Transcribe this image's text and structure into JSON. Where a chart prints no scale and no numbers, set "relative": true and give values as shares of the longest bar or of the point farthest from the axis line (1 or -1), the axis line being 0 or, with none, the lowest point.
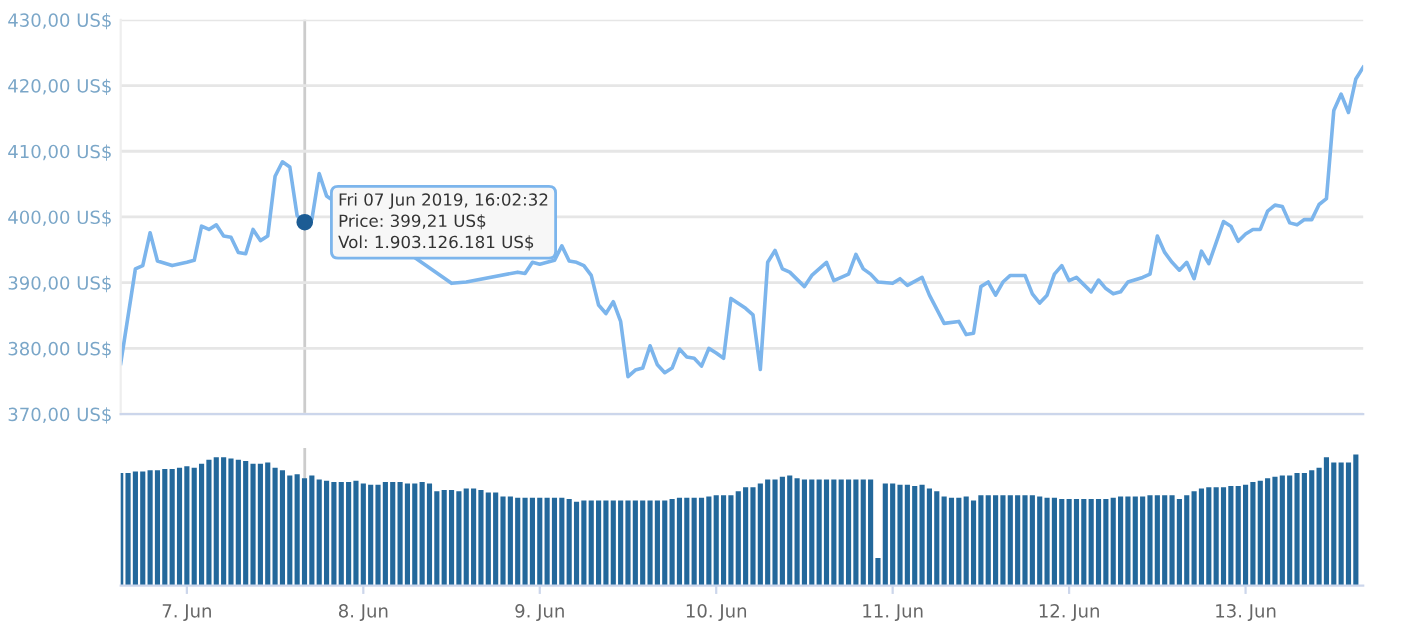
{
  "chart_data": [
    {
      "type": "line",
      "color": "#7cb5ec",
      "marker": "none",
      "grid": "y",
      "tick_labels": "y",
      "xlim": [
        "2019-06-06T15:00",
        "2019-06-13T16:00"
      ],
      "ylim": [
        370,
        430
      ],
      "yticks": [
        {
          "value": 370,
          "label": "370,00 US$"
        },
        {
          "value": 380,
          "label": "380,00 US$"
        },
        {
          "value": 390,
          "label": "390,00 US$"
        },
        {
          "value": 400,
          "label": "400,00 US$"
        },
        {
          "value": 410,
          "label": "410,00 US$"
        },
        {
          "value": 420,
          "label": "420,00 US$"
        },
        {
          "value": 430,
          "label": "430,00 US$"
        }
      ],
      "x": [
        "2019-06-06T15:00",
        "2019-06-06T17:00",
        "2019-06-06T18:00",
        "2019-06-06T19:00",
        "2019-06-06T20:00",
        "2019-06-06T22:00",
        "2019-06-07T00:00",
        "2019-06-07T01:00",
        "2019-06-07T02:00",
        "2019-06-07T03:00",
        "2019-06-07T04:00",
        "2019-06-07T05:00",
        "2019-06-07T06:00",
        "2019-06-07T07:00",
        "2019-06-07T08:00",
        "2019-06-07T09:00",
        "2019-06-07T10:00",
        "2019-06-07T11:00",
        "2019-06-07T12:00",
        "2019-06-07T13:00",
        "2019-06-07T14:00",
        "2019-06-07T15:00",
        "2019-06-07T16:02",
        "2019-06-07T17:00",
        "2019-06-07T18:00",
        "2019-06-07T19:00",
        "2019-06-08T12:00",
        "2019-06-08T14:00",
        "2019-06-08T21:00",
        "2019-06-08T22:00",
        "2019-06-08T23:00",
        "2019-06-09T00:00",
        "2019-06-09T02:00",
        "2019-06-09T03:00",
        "2019-06-09T04:00",
        "2019-06-09T05:00",
        "2019-06-09T06:00",
        "2019-06-09T07:00",
        "2019-06-09T08:00",
        "2019-06-09T09:00",
        "2019-06-09T10:00",
        "2019-06-09T11:00",
        "2019-06-09T12:00",
        "2019-06-09T13:00",
        "2019-06-09T14:00",
        "2019-06-09T15:00",
        "2019-06-09T16:00",
        "2019-06-09T17:00",
        "2019-06-09T18:00",
        "2019-06-09T19:00",
        "2019-06-09T20:00",
        "2019-06-09T21:00",
        "2019-06-09T22:00",
        "2019-06-09T23:00",
        "2019-06-10T00:00",
        "2019-06-10T01:00",
        "2019-06-10T02:00",
        "2019-06-10T04:00",
        "2019-06-10T05:00",
        "2019-06-10T06:00",
        "2019-06-10T07:00",
        "2019-06-10T08:00",
        "2019-06-10T09:00",
        "2019-06-10T10:00",
        "2019-06-10T12:00",
        "2019-06-10T13:00",
        "2019-06-10T15:00",
        "2019-06-10T16:00",
        "2019-06-10T18:00",
        "2019-06-10T19:00",
        "2019-06-10T20:00",
        "2019-06-10T21:00",
        "2019-06-10T22:00",
        "2019-06-11T00:00",
        "2019-06-11T01:00",
        "2019-06-11T02:00",
        "2019-06-11T04:00",
        "2019-06-11T05:00",
        "2019-06-11T07:00",
        "2019-06-11T09:00",
        "2019-06-11T10:00",
        "2019-06-11T11:00",
        "2019-06-11T12:00",
        "2019-06-11T13:00",
        "2019-06-11T14:00",
        "2019-06-11T15:00",
        "2019-06-11T16:00",
        "2019-06-11T18:00",
        "2019-06-11T19:00",
        "2019-06-11T20:00",
        "2019-06-11T21:00",
        "2019-06-11T22:00",
        "2019-06-11T23:00",
        "2019-06-12T00:00",
        "2019-06-12T01:00",
        "2019-06-12T03:00",
        "2019-06-12T04:00",
        "2019-06-12T05:00",
        "2019-06-12T06:00",
        "2019-06-12T07:00",
        "2019-06-12T08:00",
        "2019-06-12T10:00",
        "2019-06-12T11:00",
        "2019-06-12T12:00",
        "2019-06-12T13:00",
        "2019-06-12T14:00",
        "2019-06-12T15:00",
        "2019-06-12T16:00",
        "2019-06-12T17:00",
        "2019-06-12T18:00",
        "2019-06-12T19:00",
        "2019-06-12T20:00",
        "2019-06-12T21:00",
        "2019-06-12T22:00",
        "2019-06-12T23:00",
        "2019-06-13T00:00",
        "2019-06-13T01:00",
        "2019-06-13T02:00",
        "2019-06-13T03:00",
        "2019-06-13T04:00",
        "2019-06-13T05:00",
        "2019-06-13T06:00",
        "2019-06-13T07:00",
        "2019-06-13T08:00",
        "2019-06-13T09:00",
        "2019-06-13T10:00",
        "2019-06-13T11:00",
        "2019-06-13T12:00",
        "2019-06-13T13:00",
        "2019-06-13T14:00",
        "2019-06-13T15:00",
        "2019-06-13T16:00"
      ],
      "values": [
        377.7,
        392.1,
        392.6,
        397.6,
        393.3,
        392.6,
        393.1,
        393.4,
        398.6,
        398.1,
        398.8,
        397.1,
        396.9,
        394.6,
        394.4,
        398.1,
        396.4,
        397.1,
        406.2,
        408.4,
        407.6,
        400.2,
        399.2,
        399.6,
        406.6,
        403.2,
        389.9,
        390.1,
        391.6,
        391.4,
        393.1,
        392.8,
        393.4,
        395.6,
        393.3,
        393.1,
        392.6,
        391.1,
        386.6,
        385.3,
        387.1,
        384.1,
        375.7,
        376.7,
        377.0,
        380.4,
        377.5,
        376.3,
        377.0,
        379.9,
        378.7,
        378.5,
        377.3,
        380.0,
        379.3,
        378.5,
        387.6,
        386.1,
        385.1,
        376.8,
        393.1,
        394.9,
        392.1,
        391.6,
        389.4,
        391.1,
        393.1,
        390.3,
        391.3,
        394.3,
        392.1,
        391.3,
        390.1,
        389.9,
        390.6,
        389.6,
        390.8,
        388.1,
        383.8,
        384.1,
        382.1,
        382.3,
        389.4,
        390.1,
        388.1,
        390.1,
        391.1,
        391.1,
        388.3,
        386.9,
        388.1,
        391.3,
        392.6,
        390.3,
        390.8,
        388.6,
        390.4,
        389.1,
        388.3,
        388.6,
        390.1,
        390.8,
        391.3,
        397.1,
        394.6,
        393.1,
        391.9,
        393.1,
        390.6,
        394.8,
        392.9,
        396.1,
        399.3,
        398.6,
        396.3,
        397.4,
        398.1,
        398.1,
        400.9,
        401.8,
        401.6,
        399.1,
        398.8,
        399.6,
        399.6,
        401.9,
        402.8,
        416.2,
        418.7,
        415.9,
        421.0,
        422.8
      ],
      "ref_lines": [
        {
          "axis": "x",
          "value": "2019-06-07T16:02",
          "color": "#cccccc"
        }
      ],
      "annotations": [
        {
          "text": "Fri 07 Jun 2019, 16:02:32\nPrice: 399,21 US$\nVol: 1.903.126.181 US$",
          "x": "2019-06-07T16:02",
          "y": 399.2
        }
      ]
    },
    {
      "type": "bar",
      "relative": true,
      "color": "#23689b",
      "tick_labels": "x",
      "xlim": [
        "2019-06-06T15:00",
        "2019-06-13T16:00"
      ],
      "xticks": [
        {
          "value": "2019-06-07",
          "label": "7. Jun"
        },
        {
          "value": "2019-06-08",
          "label": "8. Jun"
        },
        {
          "value": "2019-06-09",
          "label": "9. Jun"
        },
        {
          "value": "2019-06-10",
          "label": "10. Jun"
        },
        {
          "value": "2019-06-11",
          "label": "11. Jun"
        },
        {
          "value": "2019-06-12",
          "label": "12. Jun"
        },
        {
          "value": "2019-06-13",
          "label": "13. Jun"
        }
      ],
      "x": [
        "2019-06-06T15:00",
        "2019-06-06T16:00",
        "2019-06-06T17:00",
        "2019-06-06T18:00",
        "2019-06-06T19:00",
        "2019-06-06T20:00",
        "2019-06-06T21:00",
        "2019-06-06T22:00",
        "2019-06-06T23:00",
        "2019-06-07T00:00",
        "2019-06-07T01:00",
        "2019-06-07T02:00",
        "2019-06-07T03:00",
        "2019-06-07T04:00",
        "2019-06-07T05:00",
        "2019-06-07T06:00",
        "2019-06-07T07:00",
        "2019-06-07T08:00",
        "2019-06-07T09:00",
        "2019-06-07T10:00",
        "2019-06-07T11:00",
        "2019-06-07T12:00",
        "2019-06-07T13:00",
        "2019-06-07T14:00",
        "2019-06-07T15:00",
        "2019-06-07T16:00",
        "2019-06-07T17:00",
        "2019-06-07T18:00",
        "2019-06-07T19:00",
        "2019-06-07T20:00",
        "2019-06-07T21:00",
        "2019-06-07T22:00",
        "2019-06-07T23:00",
        "2019-06-08T00:00",
        "2019-06-08T01:00",
        "2019-06-08T02:00",
        "2019-06-08T03:00",
        "2019-06-08T04:00",
        "2019-06-08T05:00",
        "2019-06-08T06:00",
        "2019-06-08T07:00",
        "2019-06-08T08:00",
        "2019-06-08T09:00",
        "2019-06-08T10:00",
        "2019-06-08T11:00",
        "2019-06-08T12:00",
        "2019-06-08T13:00",
        "2019-06-08T14:00",
        "2019-06-08T15:00",
        "2019-06-08T16:00",
        "2019-06-08T17:00",
        "2019-06-08T18:00",
        "2019-06-08T19:00",
        "2019-06-08T20:00",
        "2019-06-08T21:00",
        "2019-06-08T22:00",
        "2019-06-08T23:00",
        "2019-06-09T00:00",
        "2019-06-09T01:00",
        "2019-06-09T02:00",
        "2019-06-09T03:00",
        "2019-06-09T04:00",
        "2019-06-09T05:00",
        "2019-06-09T06:00",
        "2019-06-09T07:00",
        "2019-06-09T08:00",
        "2019-06-09T09:00",
        "2019-06-09T10:00",
        "2019-06-09T11:00",
        "2019-06-09T12:00",
        "2019-06-09T13:00",
        "2019-06-09T14:00",
        "2019-06-09T15:00",
        "2019-06-09T16:00",
        "2019-06-09T17:00",
        "2019-06-09T18:00",
        "2019-06-09T19:00",
        "2019-06-09T20:00",
        "2019-06-09T21:00",
        "2019-06-09T22:00",
        "2019-06-09T23:00",
        "2019-06-10T00:00",
        "2019-06-10T01:00",
        "2019-06-10T02:00",
        "2019-06-10T03:00",
        "2019-06-10T04:00",
        "2019-06-10T05:00",
        "2019-06-10T06:00",
        "2019-06-10T07:00",
        "2019-06-10T08:00",
        "2019-06-10T09:00",
        "2019-06-10T10:00",
        "2019-06-10T11:00",
        "2019-06-10T12:00",
        "2019-06-10T13:00",
        "2019-06-10T14:00",
        "2019-06-10T15:00",
        "2019-06-10T16:00",
        "2019-06-10T17:00",
        "2019-06-10T18:00",
        "2019-06-10T19:00",
        "2019-06-10T20:00",
        "2019-06-10T21:00",
        "2019-06-10T22:00",
        "2019-06-10T23:00",
        "2019-06-11T00:00",
        "2019-06-11T01:00",
        "2019-06-11T02:00",
        "2019-06-11T03:00",
        "2019-06-11T04:00",
        "2019-06-11T05:00",
        "2019-06-11T06:00",
        "2019-06-11T07:00",
        "2019-06-11T08:00",
        "2019-06-11T09:00",
        "2019-06-11T10:00",
        "2019-06-11T11:00",
        "2019-06-11T12:00",
        "2019-06-11T13:00",
        "2019-06-11T14:00",
        "2019-06-11T15:00",
        "2019-06-11T16:00",
        "2019-06-11T17:00",
        "2019-06-11T18:00",
        "2019-06-11T19:00",
        "2019-06-11T20:00",
        "2019-06-11T21:00",
        "2019-06-11T22:00",
        "2019-06-11T23:00",
        "2019-06-12T00:00",
        "2019-06-12T01:00",
        "2019-06-12T02:00",
        "2019-06-12T03:00",
        "2019-06-12T04:00",
        "2019-06-12T05:00",
        "2019-06-12T06:00",
        "2019-06-12T07:00",
        "2019-06-12T08:00",
        "2019-06-12T09:00",
        "2019-06-12T10:00",
        "2019-06-12T11:00",
        "2019-06-12T12:00",
        "2019-06-12T13:00",
        "2019-06-12T14:00",
        "2019-06-12T15:00",
        "2019-06-12T16:00",
        "2019-06-12T17:00",
        "2019-06-12T18:00",
        "2019-06-12T19:00",
        "2019-06-12T20:00",
        "2019-06-12T21:00",
        "2019-06-12T22:00",
        "2019-06-12T23:00",
        "2019-06-13T00:00",
        "2019-06-13T01:00",
        "2019-06-13T02:00",
        "2019-06-13T03:00",
        "2019-06-13T04:00",
        "2019-06-13T05:00",
        "2019-06-13T06:00",
        "2019-06-13T07:00",
        "2019-06-13T08:00",
        "2019-06-13T09:00",
        "2019-06-13T10:00",
        "2019-06-13T11:00",
        "2019-06-13T12:00",
        "2019-06-13T13:00",
        "2019-06-13T14:00",
        "2019-06-13T15:00"
      ],
      "values": [
        0.86,
        0.86,
        0.87,
        0.87,
        0.88,
        0.88,
        0.89,
        0.89,
        0.9,
        0.91,
        0.9,
        0.93,
        0.96,
        0.98,
        0.98,
        0.97,
        0.96,
        0.95,
        0.93,
        0.93,
        0.94,
        0.9,
        0.88,
        0.84,
        0.85,
        0.82,
        0.84,
        0.81,
        0.8,
        0.79,
        0.79,
        0.79,
        0.8,
        0.78,
        0.77,
        0.77,
        0.79,
        0.79,
        0.79,
        0.78,
        0.78,
        0.79,
        0.78,
        0.72,
        0.73,
        0.73,
        0.72,
        0.74,
        0.74,
        0.73,
        0.71,
        0.71,
        0.68,
        0.68,
        0.67,
        0.67,
        0.67,
        0.67,
        0.67,
        0.67,
        0.67,
        0.66,
        0.64,
        0.65,
        0.65,
        0.65,
        0.65,
        0.65,
        0.65,
        0.65,
        0.65,
        0.65,
        0.65,
        0.65,
        0.65,
        0.66,
        0.67,
        0.67,
        0.67,
        0.67,
        0.68,
        0.69,
        0.69,
        0.69,
        0.72,
        0.75,
        0.75,
        0.78,
        0.81,
        0.81,
        0.83,
        0.84,
        0.82,
        0.81,
        0.81,
        0.81,
        0.81,
        0.81,
        0.81,
        0.81,
        0.81,
        0.81,
        0.81,
        0.21,
        0.78,
        0.78,
        0.77,
        0.77,
        0.76,
        0.77,
        0.74,
        0.72,
        0.68,
        0.67,
        0.67,
        0.68,
        0.65,
        0.69,
        0.69,
        0.69,
        0.69,
        0.69,
        0.69,
        0.69,
        0.69,
        0.68,
        0.67,
        0.67,
        0.66,
        0.66,
        0.66,
        0.66,
        0.66,
        0.66,
        0.66,
        0.67,
        0.68,
        0.68,
        0.68,
        0.68,
        0.69,
        0.69,
        0.69,
        0.69,
        0.66,
        0.69,
        0.72,
        0.74,
        0.75,
        0.75,
        0.75,
        0.76,
        0.76,
        0.77,
        0.79,
        0.8,
        0.82,
        0.83,
        0.84,
        0.84,
        0.86,
        0.86,
        0.88,
        0.9,
        0.98,
        0.94,
        0.94,
        0.94,
        1.0
      ],
      "ref_lines": [
        {
          "axis": "x",
          "value": "2019-06-07T16:02",
          "color": "#cccccc"
        }
      ]
    }
  ]
}
